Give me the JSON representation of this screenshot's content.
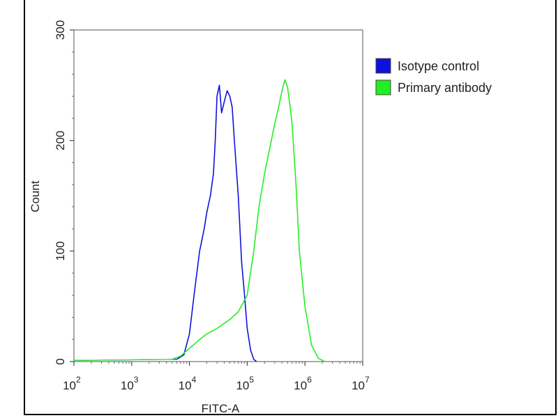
{
  "chart_data": {
    "type": "line",
    "title": "",
    "xlabel": "FITC-A",
    "ylabel": "Count",
    "xscale": "log",
    "xlim": [
      100,
      10000000
    ],
    "ylim": [
      0,
      300
    ],
    "grid": false,
    "legend_position": "top-right",
    "x_ticks": [
      {
        "base": "10",
        "exp": "2"
      },
      {
        "base": "10",
        "exp": "3"
      },
      {
        "base": "10",
        "exp": "4"
      },
      {
        "base": "10",
        "exp": "5"
      },
      {
        "base": "10",
        "exp": "6"
      },
      {
        "base": "10",
        "exp": "7"
      }
    ],
    "y_ticks": [
      "0",
      "100",
      "200",
      "300"
    ],
    "series": [
      {
        "name": "Isotype control",
        "color": "#1010dd",
        "x": [
          6000,
          8000,
          10000,
          12000,
          15000,
          18000,
          20000,
          23000,
          26000,
          28000,
          30000,
          33000,
          36000,
          40000,
          45000,
          50000,
          55000,
          60000,
          70000,
          80000,
          90000,
          100000,
          115000,
          130000,
          145000
        ],
        "y": [
          2,
          6,
          25,
          60,
          100,
          120,
          135,
          150,
          170,
          200,
          240,
          250,
          225,
          235,
          245,
          240,
          230,
          200,
          150,
          90,
          60,
          30,
          10,
          2,
          0
        ]
      },
      {
        "name": "Primary antibody",
        "color": "#22ee22",
        "x": [
          5000,
          7000,
          10000,
          15000,
          20000,
          30000,
          50000,
          70000,
          100000,
          130000,
          160000,
          200000,
          250000,
          300000,
          350000,
          400000,
          450000,
          500000,
          550000,
          600000,
          700000,
          800000,
          1000000,
          1300000,
          1700000,
          2200000
        ],
        "y": [
          2,
          5,
          12,
          20,
          25,
          30,
          38,
          45,
          60,
          100,
          140,
          170,
          195,
          215,
          230,
          245,
          255,
          248,
          232,
          215,
          160,
          100,
          50,
          15,
          3,
          0
        ]
      }
    ]
  }
}
